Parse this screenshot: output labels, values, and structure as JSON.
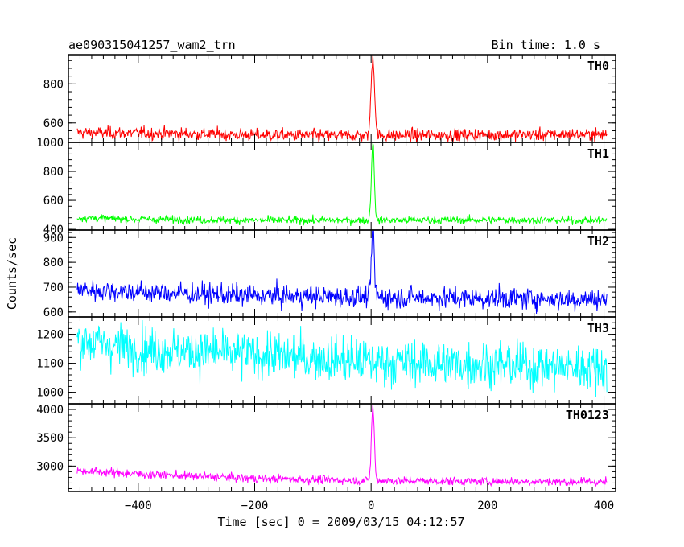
{
  "header": {
    "obs_id": "ae090315041257_wam2_trn",
    "bin_time": "Bin time: 1.0 s"
  },
  "xlabel": "Time [sec] 0 = 2009/03/15 04:12:57",
  "ylabel": "Counts/sec",
  "chart_data": {
    "type": "line",
    "xlabel": "Time [sec] 0 = 2009/03/15 04:12:57",
    "ylabel": "Counts/sec",
    "xlim": [
      -520,
      420
    ],
    "x_ticks": [
      -400,
      -200,
      0,
      200,
      400
    ],
    "x_tick_labels": [
      "−400",
      "−200",
      "0",
      "200",
      "400"
    ],
    "panels": [
      {
        "name": "TH0",
        "color": "#ff0000",
        "ylim": [
          500,
          950
        ],
        "y_ticks": [
          600,
          800,
          1000
        ],
        "y_tick_labels": [
          "600",
          "800",
          "1000"
        ],
        "x_range": [
          -505,
          405
        ],
        "baseline": [
          [
            -505,
            550
          ],
          [
            -400,
            548
          ],
          [
            -200,
            538
          ],
          [
            0,
            535
          ],
          [
            200,
            540
          ],
          [
            405,
            540
          ]
        ],
        "noise_sd": 16,
        "peak": {
          "x": 3,
          "y": 940,
          "width": 6
        }
      },
      {
        "name": "TH1",
        "color": "#00ff00",
        "ylim": [
          395,
          1000
        ],
        "y_ticks": [
          400,
          600,
          800,
          1000
        ],
        "y_tick_labels": [
          "400",
          "600",
          "800",
          "1000"
        ],
        "x_range": [
          -505,
          405
        ],
        "baseline": [
          [
            -505,
            480
          ],
          [
            -400,
            470
          ],
          [
            -200,
            462
          ],
          [
            0,
            462
          ],
          [
            200,
            465
          ],
          [
            405,
            462
          ]
        ],
        "noise_sd": 13,
        "peak": {
          "x": 3,
          "y": 1000,
          "width": 5
        }
      },
      {
        "name": "TH2",
        "color": "#0000ff",
        "ylim": [
          580,
          930
        ],
        "y_ticks": [
          600,
          700,
          800,
          900
        ],
        "y_tick_labels": [
          "600",
          "700",
          "800",
          "900"
        ],
        "x_range": [
          -505,
          405
        ],
        "baseline": [
          [
            -505,
            690
          ],
          [
            -400,
            680
          ],
          [
            -200,
            665
          ],
          [
            0,
            660
          ],
          [
            200,
            655
          ],
          [
            405,
            650
          ]
        ],
        "noise_sd": 22,
        "peak": {
          "x": 3,
          "y": 930,
          "width": 5
        }
      },
      {
        "name": "TH3",
        "color": "#00ffff",
        "ylim": [
          960,
          1260
        ],
        "y_ticks": [
          1000,
          1100,
          1200
        ],
        "y_tick_labels": [
          "1000",
          "1100",
          "1200"
        ],
        "x_range": [
          -505,
          405
        ],
        "baseline": [
          [
            -505,
            1180
          ],
          [
            -400,
            1150
          ],
          [
            -200,
            1130
          ],
          [
            0,
            1105
          ],
          [
            200,
            1095
          ],
          [
            405,
            1085
          ]
        ],
        "noise_sd": 40,
        "peak": null
      },
      {
        "name": "TH0123",
        "color": "#ff00ff",
        "ylim": [
          2550,
          4100
        ],
        "y_ticks": [
          3000,
          3500,
          4000
        ],
        "y_tick_labels": [
          "3000",
          "3500",
          "4000"
        ],
        "x_range": [
          -505,
          405
        ],
        "baseline": [
          [
            -505,
            2920
          ],
          [
            -400,
            2860
          ],
          [
            -200,
            2780
          ],
          [
            0,
            2740
          ],
          [
            200,
            2730
          ],
          [
            405,
            2720
          ]
        ],
        "noise_sd": 38,
        "peak": {
          "x": 3,
          "y": 4050,
          "width": 5
        }
      }
    ]
  }
}
